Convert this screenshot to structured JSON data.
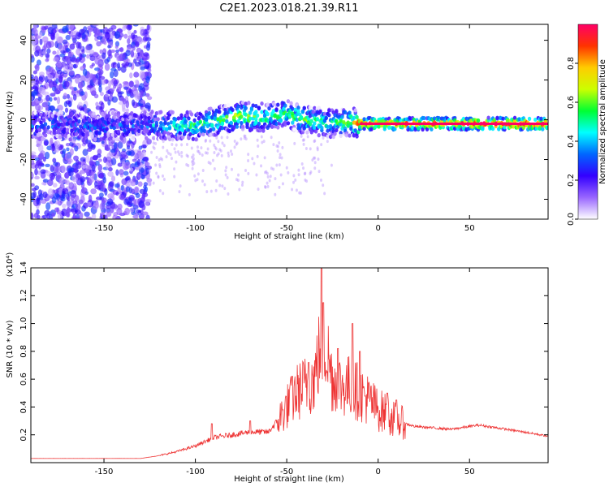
{
  "chart_data": [
    {
      "type": "heatmap",
      "title": "C2E1.2023.018.21.39.R11",
      "xlabel": "Height of straight line (km)",
      "ylabel": "Frequency (Hz)",
      "xlim": [
        -190,
        93
      ],
      "ylim": [
        -50,
        48
      ],
      "x_ticks": [
        -150,
        -100,
        -50,
        0,
        50
      ],
      "y_ticks": [
        40,
        20,
        0,
        -20,
        -40
      ],
      "colorbar": {
        "label": "Normalized spectral amplitude",
        "range": [
          0,
          1
        ],
        "ticks": [
          0.0,
          0.2,
          0.4,
          0.6,
          0.8
        ],
        "colormap": [
          "#ffffff",
          "#9966ff",
          "#3300ff",
          "#0066ff",
          "#00ffff",
          "#00ff33",
          "#ccff00",
          "#ffcc00",
          "#ff3300",
          "#ff0066"
        ]
      },
      "ridge": [
        {
          "x": -190,
          "freq": -3,
          "amp": 0.3
        },
        {
          "x": -170,
          "freq": -3,
          "amp": 0.3
        },
        {
          "x": -150,
          "freq": -3,
          "amp": 0.3
        },
        {
          "x": -130,
          "freq": -3,
          "amp": 0.25
        },
        {
          "x": -120,
          "freq": -3,
          "amp": 0.4
        },
        {
          "x": -100,
          "freq": -3,
          "amp": 0.5
        },
        {
          "x": -85,
          "freq": 0,
          "amp": 0.55
        },
        {
          "x": -75,
          "freq": 2,
          "amp": 0.7
        },
        {
          "x": -60,
          "freq": 1,
          "amp": 0.5
        },
        {
          "x": -50,
          "freq": 3,
          "amp": 0.55
        },
        {
          "x": -40,
          "freq": 0,
          "amp": 0.55
        },
        {
          "x": -25,
          "freq": -2,
          "amp": 0.5
        },
        {
          "x": -15,
          "freq": -1,
          "amp": 0.6
        },
        {
          "x": -10,
          "freq": -2,
          "amp": 0.95
        },
        {
          "x": 0,
          "freq": -2,
          "amp": 0.85
        },
        {
          "x": 20,
          "freq": -2,
          "amp": 0.9
        },
        {
          "x": 50,
          "freq": -2,
          "amp": 0.95
        },
        {
          "x": 93,
          "freq": -2,
          "amp": 1.0
        }
      ]
    },
    {
      "type": "line",
      "xlabel": "Height of straight line (km)",
      "ylabel": "SNR (10 * v/v)",
      "y_multiplier": "(x10⁴)",
      "xlim": [
        -190,
        93
      ],
      "ylim": [
        0,
        1.4
      ],
      "x_ticks": [
        -150,
        -100,
        -50,
        0,
        50
      ],
      "y_ticks": [
        0.2,
        0.4,
        0.6,
        0.8,
        1.0,
        1.2,
        1.4
      ],
      "series_color": "#ee3333",
      "envelope": {
        "x": [
          -190,
          -150,
          -130,
          -120,
          -110,
          -100,
          -90,
          -80,
          -70,
          -60,
          -55,
          -50,
          -45,
          -40,
          -35,
          -32,
          -30,
          -28,
          -25,
          -20,
          -15,
          -10,
          -5,
          0,
          5,
          10,
          15,
          20,
          30,
          40,
          50,
          55,
          60,
          70,
          80,
          93
        ],
        "y": [
          0.03,
          0.03,
          0.03,
          0.05,
          0.08,
          0.12,
          0.18,
          0.2,
          0.22,
          0.22,
          0.3,
          0.4,
          0.5,
          0.55,
          0.6,
          0.8,
          0.9,
          0.8,
          0.6,
          0.55,
          0.55,
          0.5,
          0.45,
          0.38,
          0.35,
          0.3,
          0.28,
          0.26,
          0.25,
          0.24,
          0.26,
          0.27,
          0.26,
          0.24,
          0.22,
          0.19
        ]
      },
      "spikes": [
        {
          "x": -91,
          "y": 0.28
        },
        {
          "x": -70,
          "y": 0.3
        },
        {
          "x": -47,
          "y": 0.62
        },
        {
          "x": -38,
          "y": 0.72
        },
        {
          "x": -31,
          "y": 1.4
        },
        {
          "x": -30,
          "y": 1.15
        },
        {
          "x": -22,
          "y": 0.82
        },
        {
          "x": -14,
          "y": 1.0
        },
        {
          "x": -10,
          "y": 0.8
        },
        {
          "x": 5,
          "y": 0.5
        },
        {
          "x": 10,
          "y": 0.45
        }
      ]
    }
  ]
}
